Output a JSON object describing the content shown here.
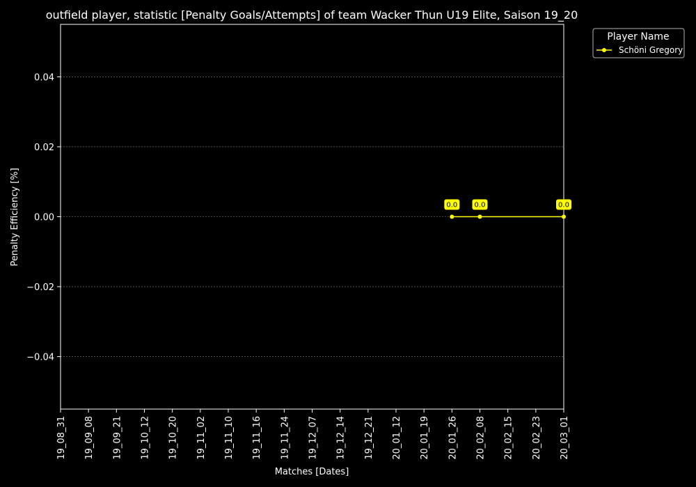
{
  "chart_data": {
    "type": "line",
    "title": "outfield player, statistic [Penalty Goals/Attempts] of team Wacker Thun U19 Elite, Saison 19_20",
    "xlabel": "Matches [Dates]",
    "ylabel": "Penalty Efficiency [%]",
    "categories": [
      "19_08_31",
      "19_09_08",
      "19_09_21",
      "19_10_12",
      "19_10_20",
      "19_11_02",
      "19_11_10",
      "19_11_16",
      "19_11_24",
      "19_12_07",
      "19_12_14",
      "19_12_21",
      "20_01_12",
      "20_01_19",
      "20_01_26",
      "20_02_08",
      "20_02_15",
      "20_02_23",
      "20_03_01"
    ],
    "yticks": [
      "0.04",
      "0.02",
      "0.00",
      "−0.02",
      "−0.04"
    ],
    "ylim": [
      -0.055,
      0.055
    ],
    "grid": true,
    "legend": {
      "title": "Player Name",
      "position": "top-right-outside"
    },
    "series": [
      {
        "name": "Schöni Gregory",
        "color": "#ffff00",
        "points": [
          {
            "x": "20_01_26",
            "y": 0.0,
            "label": "0.0"
          },
          {
            "x": "20_02_08",
            "y": 0.0,
            "label": "0.0"
          },
          {
            "x": "20_03_01",
            "y": 0.0,
            "label": "0.0"
          }
        ]
      }
    ],
    "colors": {
      "background": "#000000",
      "foreground": "#ffffff",
      "grid": "#808080"
    }
  }
}
